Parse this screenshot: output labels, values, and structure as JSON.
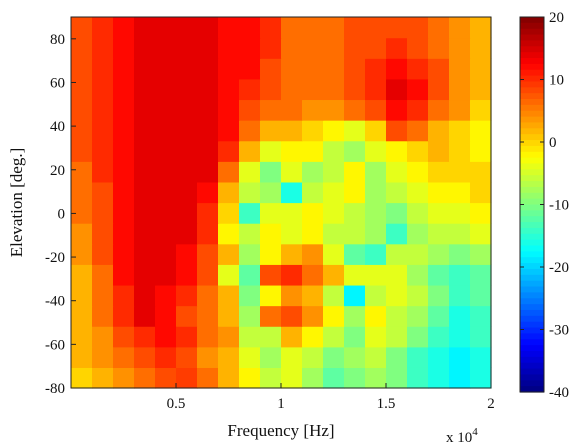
{
  "chart_data": {
    "type": "heatmap",
    "xlabel": "Frequency [Hz]",
    "ylabel": "Elevation [deg.]",
    "x_exponent_label": "x 10",
    "x_exponent": "4",
    "xlim": [
      0,
      20000
    ],
    "ylim": [
      -80,
      90
    ],
    "x_ticks": [
      5000,
      10000,
      15000,
      20000
    ],
    "x_tick_labels": [
      "0.5",
      "1",
      "1.5",
      "2"
    ],
    "y_ticks": [
      -80,
      -60,
      -40,
      -20,
      0,
      20,
      40,
      60,
      80
    ],
    "y_tick_labels": [
      "-80",
      "-60",
      "-40",
      "-20",
      "0",
      "20",
      "40",
      "60",
      "80"
    ],
    "colorbar": {
      "min": -40,
      "max": 20,
      "ticks": [
        20,
        10,
        0,
        -10,
        -20,
        -30,
        -40
      ],
      "tick_labels": [
        "20",
        "10",
        "0",
        "-10",
        "-20",
        "-30",
        "-40"
      ],
      "colormap": "jet"
    },
    "elevations": [
      -80,
      -70,
      -60,
      -50,
      -40,
      -30,
      -20,
      -10,
      0,
      10,
      20,
      30,
      40,
      50,
      60,
      70,
      80,
      90
    ],
    "frequencies_khz": [
      0.5,
      1.5,
      2.5,
      3.5,
      4.5,
      5.5,
      6.5,
      7.5,
      8.5,
      9.5,
      10.5,
      11.5,
      12.5,
      13.5,
      14.5,
      15.5,
      16.5,
      17.5,
      18.5,
      19.5
    ],
    "values": [
      [
        0,
        2,
        4,
        6,
        8,
        9,
        6,
        2,
        -2,
        -6,
        -4,
        -8,
        -12,
        -10,
        -8,
        -10,
        -14,
        -16,
        -18,
        -16
      ],
      [
        2,
        4,
        6,
        8,
        10,
        8,
        4,
        2,
        -4,
        -8,
        -4,
        -6,
        -10,
        -8,
        -6,
        -10,
        -14,
        -16,
        -18,
        -16
      ],
      [
        2,
        4,
        8,
        10,
        12,
        10,
        6,
        4,
        -6,
        -6,
        2,
        -2,
        -6,
        -10,
        -4,
        -6,
        -10,
        -14,
        -16,
        -14
      ],
      [
        2,
        6,
        10,
        14,
        12,
        8,
        6,
        2,
        -8,
        6,
        8,
        4,
        -2,
        -8,
        -2,
        -6,
        -8,
        -12,
        -16,
        -14
      ],
      [
        2,
        6,
        10,
        14,
        12,
        10,
        6,
        2,
        -10,
        -2,
        4,
        2,
        -6,
        -18,
        -6,
        -4,
        -6,
        -10,
        -14,
        -12
      ],
      [
        2,
        6,
        12,
        14,
        14,
        12,
        8,
        -4,
        -12,
        8,
        10,
        6,
        2,
        -4,
        -4,
        -4,
        -8,
        -12,
        -14,
        -12
      ],
      [
        4,
        8,
        12,
        14,
        14,
        12,
        8,
        2,
        -8,
        -2,
        2,
        4,
        -4,
        -12,
        -14,
        -6,
        -6,
        -8,
        -10,
        -8
      ],
      [
        4,
        8,
        12,
        14,
        14,
        14,
        10,
        -2,
        -6,
        -2,
        -4,
        -2,
        -6,
        -6,
        -8,
        -14,
        -8,
        -6,
        -6,
        -4
      ],
      [
        6,
        8,
        12,
        14,
        14,
        14,
        10,
        0,
        -14,
        -4,
        -4,
        -2,
        -4,
        -6,
        -8,
        -10,
        -6,
        -4,
        -4,
        -2
      ],
      [
        6,
        8,
        12,
        14,
        14,
        14,
        12,
        2,
        -6,
        -8,
        -16,
        -6,
        -4,
        -2,
        -8,
        -6,
        -4,
        -2,
        -2,
        0
      ],
      [
        6,
        10,
        12,
        14,
        14,
        14,
        14,
        6,
        -4,
        -10,
        -4,
        -8,
        -6,
        -2,
        -8,
        -4,
        -2,
        0,
        0,
        0
      ],
      [
        8,
        10,
        12,
        14,
        14,
        14,
        14,
        10,
        2,
        -4,
        -2,
        -2,
        -6,
        -8,
        -4,
        -2,
        0,
        2,
        0,
        -2
      ],
      [
        8,
        10,
        12,
        14,
        14,
        14,
        14,
        12,
        6,
        2,
        2,
        0,
        -2,
        -4,
        0,
        8,
        6,
        2,
        0,
        -2
      ],
      [
        8,
        10,
        12,
        14,
        14,
        14,
        14,
        12,
        8,
        6,
        6,
        4,
        4,
        6,
        8,
        12,
        10,
        6,
        4,
        0
      ],
      [
        8,
        10,
        12,
        14,
        14,
        14,
        14,
        12,
        10,
        8,
        6,
        6,
        6,
        8,
        10,
        14,
        12,
        8,
        4,
        2
      ],
      [
        8,
        10,
        12,
        14,
        14,
        14,
        14,
        12,
        12,
        8,
        6,
        6,
        6,
        8,
        10,
        12,
        10,
        8,
        4,
        2
      ],
      [
        8,
        10,
        12,
        14,
        14,
        14,
        14,
        12,
        12,
        10,
        6,
        6,
        6,
        8,
        8,
        10,
        8,
        6,
        4,
        2
      ],
      [
        8,
        10,
        12,
        14,
        14,
        14,
        14,
        12,
        12,
        10,
        6,
        6,
        6,
        8,
        8,
        8,
        8,
        6,
        4,
        2
      ]
    ]
  }
}
